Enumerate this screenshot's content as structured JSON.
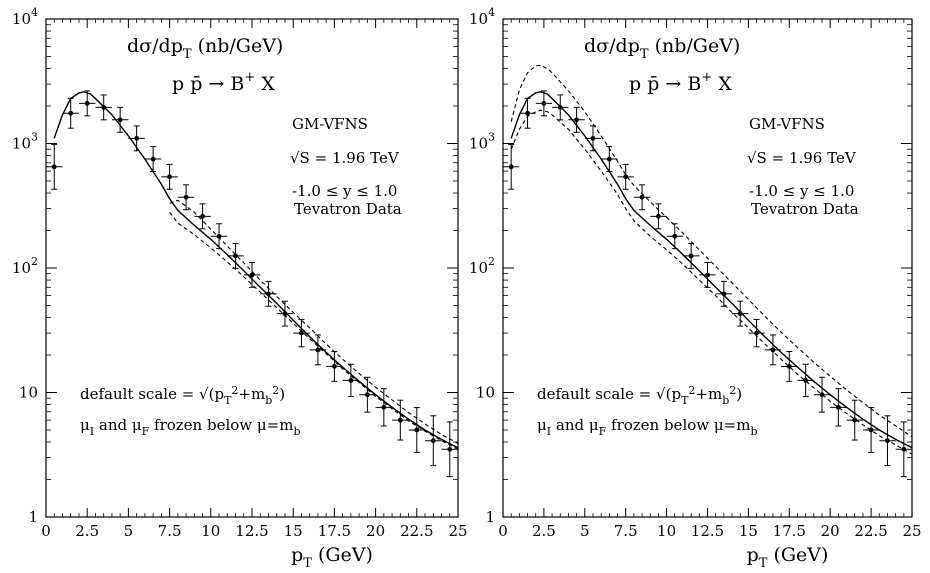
{
  "chart_data": [
    {
      "type": "line",
      "xlim": [
        0,
        25
      ],
      "ylim": [
        1,
        10000
      ],
      "yscale": "log",
      "grid": false,
      "xticks": [
        0,
        2.5,
        5,
        7.5,
        10,
        12.5,
        15,
        17.5,
        20,
        22.5,
        25
      ],
      "xtick_labels": [
        "0",
        "2.5",
        "5",
        "7.5",
        "10",
        "12.5",
        "15",
        "17.5",
        "20",
        "22.5",
        "25"
      ],
      "yticks": [
        1,
        10,
        100,
        1000,
        10000
      ],
      "ytick_labels": [
        {
          "base": "1",
          "exp": ""
        },
        {
          "base": "10",
          "exp": ""
        },
        {
          "base": "10",
          "exp": "2"
        },
        {
          "base": "10",
          "exp": "3"
        },
        {
          "base": "10",
          "exp": "4"
        }
      ],
      "xlabel": {
        "main": "p",
        "sub": "T",
        "rest": " (GeV)"
      },
      "annotations": {
        "ylabel": {
          "pre": "dσ/dp",
          "sub": "T",
          "post": " (nb/GeV)"
        },
        "process": {
          "pre": "p p̄ → B",
          "sup": "+",
          "post": " X"
        },
        "scheme": "GM-VFNS",
        "energy": "√S = 1.96 TeV",
        "rapidity": "-1.0 ≤  y ≤ 1.0",
        "data_label": "Tevatron Data",
        "scale1": {
          "a": "default scale = √(p",
          "a_sub": "T",
          "b": "2",
          "c": "+m",
          "c_sub": "b",
          "d": "2",
          "e": ")"
        },
        "scale2": {
          "a": "μ",
          "a_sub": "I",
          "b": " and μ",
          "b_sub": "F",
          "c": " frozen below μ=m",
          "c_sub": "b"
        }
      },
      "series": [
        {
          "style": "solid",
          "x": [
            0.5,
            1,
            1.5,
            2,
            2.3,
            2.7,
            3,
            4,
            5,
            6,
            7,
            7.5,
            8,
            9,
            10,
            11,
            12,
            13,
            14,
            15,
            16,
            17,
            18,
            19,
            20,
            21,
            22,
            23,
            24,
            25
          ],
          "y": [
            1100,
            1700,
            2300,
            2550,
            2600,
            2500,
            2300,
            1700,
            1150,
            750,
            470,
            360,
            290,
            220,
            170,
            128,
            95,
            70,
            52,
            38,
            28,
            21,
            16,
            12.3,
            9.6,
            7.6,
            6.1,
            5.0,
            4.2,
            3.6
          ]
        },
        {
          "style": "dashed",
          "x": [
            7.5,
            8,
            9,
            10,
            11,
            12,
            13,
            14,
            15,
            16,
            17,
            18,
            19,
            20,
            21,
            22,
            23,
            24,
            25
          ],
          "y": [
            330,
            350,
            280,
            205,
            150,
            110,
            80,
            59,
            44,
            33,
            24.5,
            18.5,
            14.2,
            11,
            8.7,
            6.9,
            5.6,
            4.6,
            3.9
          ]
        },
        {
          "style": "dashed",
          "x": [
            7.5,
            8,
            9,
            10,
            11,
            12,
            13,
            14,
            15,
            16,
            17,
            18,
            19,
            20,
            21,
            22,
            23,
            24,
            25
          ],
          "y": [
            280,
            230,
            185,
            145,
            112,
            85,
            64,
            48,
            36,
            27,
            20.5,
            15.5,
            12,
            9.3,
            7.4,
            5.9,
            4.9,
            4.1,
            3.5
          ]
        }
      ],
      "data_points": {
        "x": [
          0.5,
          1.5,
          2.5,
          3.5,
          4.5,
          5.5,
          6.5,
          7.5,
          8.5,
          9.5,
          10.5,
          11.5,
          12.5,
          13.5,
          14.5,
          15.5,
          16.5,
          17.5,
          18.5,
          19.5,
          20.5,
          21.5,
          22.5,
          23.5,
          24.5
        ],
        "y": [
          650,
          1750,
          2100,
          1950,
          1550,
          1100,
          750,
          540,
          370,
          260,
          180,
          125,
          88,
          62,
          43,
          30,
          22,
          16.2,
          12.5,
          9.6,
          7.6,
          6.0,
          5.0,
          4.1,
          3.5
        ],
        "yerr": [
          0.18,
          0.12,
          0.1,
          0.1,
          0.1,
          0.1,
          0.1,
          0.1,
          0.1,
          0.1,
          0.1,
          0.1,
          0.1,
          0.1,
          0.1,
          0.11,
          0.12,
          0.12,
          0.13,
          0.14,
          0.15,
          0.16,
          0.18,
          0.2,
          0.22
        ]
      }
    },
    {
      "type": "line",
      "xlim": [
        0,
        25
      ],
      "ylim": [
        1,
        10000
      ],
      "yscale": "log",
      "grid": false,
      "xticks": [
        0,
        2.5,
        5,
        7.5,
        10,
        12.5,
        15,
        17.5,
        20,
        22.5,
        25
      ],
      "xtick_labels": [
        "0",
        "2.5",
        "5",
        "7.5",
        "10",
        "12.5",
        "15",
        "17.5",
        "20",
        "22.5",
        "25"
      ],
      "yticks": [
        1,
        10,
        100,
        1000,
        10000
      ],
      "ytick_labels": [
        {
          "base": "1",
          "exp": ""
        },
        {
          "base": "10",
          "exp": ""
        },
        {
          "base": "10",
          "exp": "2"
        },
        {
          "base": "10",
          "exp": "3"
        },
        {
          "base": "10",
          "exp": "4"
        }
      ],
      "xlabel": {
        "main": "p",
        "sub": "T",
        "rest": " (GeV)"
      },
      "annotations": {
        "ylabel": {
          "pre": "dσ/dp",
          "sub": "T",
          "post": " (nb/GeV)"
        },
        "process": {
          "pre": "p p̄ → B",
          "sup": "+",
          "post": " X"
        },
        "scheme": "GM-VFNS",
        "energy": "√S = 1.96 TeV",
        "rapidity": "-1.0 ≤  y ≤ 1.0",
        "data_label": "Tevatron Data",
        "scale1": {
          "a": "default scale = √(p",
          "a_sub": "T",
          "b": "2",
          "c": "+m",
          "c_sub": "b",
          "d": "2",
          "e": ")"
        },
        "scale2": {
          "a": "μ",
          "a_sub": "I",
          "b": " and μ",
          "b_sub": "F",
          "c": " frozen below μ=m",
          "c_sub": "b"
        }
      },
      "series": [
        {
          "style": "solid",
          "x": [
            0.5,
            1,
            1.5,
            2,
            2.3,
            2.7,
            3,
            4,
            5,
            6,
            7,
            7.5,
            8,
            9,
            10,
            11,
            12,
            13,
            14,
            15,
            16,
            17,
            18,
            19,
            20,
            21,
            22,
            23,
            24,
            25
          ],
          "y": [
            1100,
            1700,
            2300,
            2550,
            2600,
            2500,
            2300,
            1700,
            1150,
            750,
            470,
            360,
            290,
            220,
            170,
            128,
            95,
            70,
            52,
            38,
            28,
            21,
            16,
            12.3,
            9.6,
            7.6,
            6.1,
            5.0,
            4.2,
            3.6
          ]
        },
        {
          "style": "dashed",
          "x": [
            0.5,
            1,
            1.5,
            2,
            2.3,
            2.7,
            3,
            4,
            5,
            6,
            7,
            7.5,
            8,
            9,
            10,
            11,
            12,
            13,
            14,
            15,
            16,
            17,
            18,
            19,
            20,
            21,
            22,
            23,
            24,
            25
          ],
          "y": [
            1500,
            2700,
            3700,
            4200,
            4250,
            4000,
            3700,
            2650,
            1800,
            1150,
            720,
            560,
            460,
            340,
            255,
            190,
            140,
            103,
            76,
            56,
            41,
            30.5,
            23,
            17.5,
            13.5,
            10.5,
            8.3,
            6.6,
            5.4,
            4.4
          ]
        },
        {
          "style": "dashed",
          "x": [
            0.5,
            1,
            1.5,
            2,
            2.3,
            2.7,
            3,
            4,
            5,
            6,
            7,
            7.5,
            8,
            9,
            10,
            11,
            12,
            13,
            14,
            15,
            16,
            17,
            18,
            19,
            20,
            21,
            22,
            23,
            24,
            25
          ],
          "y": [
            900,
            1300,
            1650,
            1800,
            1850,
            1800,
            1700,
            1300,
            900,
            600,
            390,
            300,
            240,
            180,
            140,
            107,
            80,
            60,
            44,
            33,
            24.5,
            18.5,
            14,
            10.9,
            8.5,
            6.8,
            5.5,
            4.5,
            3.8,
            3.2
          ]
        }
      ],
      "data_points": {
        "x": [
          0.5,
          1.5,
          2.5,
          3.5,
          4.5,
          5.5,
          6.5,
          7.5,
          8.5,
          9.5,
          10.5,
          11.5,
          12.5,
          13.5,
          14.5,
          15.5,
          16.5,
          17.5,
          18.5,
          19.5,
          20.5,
          21.5,
          22.5,
          23.5,
          24.5
        ],
        "y": [
          650,
          1750,
          2100,
          1950,
          1550,
          1100,
          750,
          540,
          370,
          260,
          180,
          125,
          88,
          62,
          43,
          30,
          22,
          16.2,
          12.5,
          9.6,
          7.6,
          6.0,
          5.0,
          4.1,
          3.5
        ],
        "yerr": [
          0.18,
          0.12,
          0.1,
          0.1,
          0.1,
          0.1,
          0.1,
          0.1,
          0.1,
          0.1,
          0.1,
          0.1,
          0.1,
          0.1,
          0.1,
          0.11,
          0.12,
          0.12,
          0.13,
          0.14,
          0.15,
          0.16,
          0.18,
          0.2,
          0.22
        ]
      }
    }
  ]
}
